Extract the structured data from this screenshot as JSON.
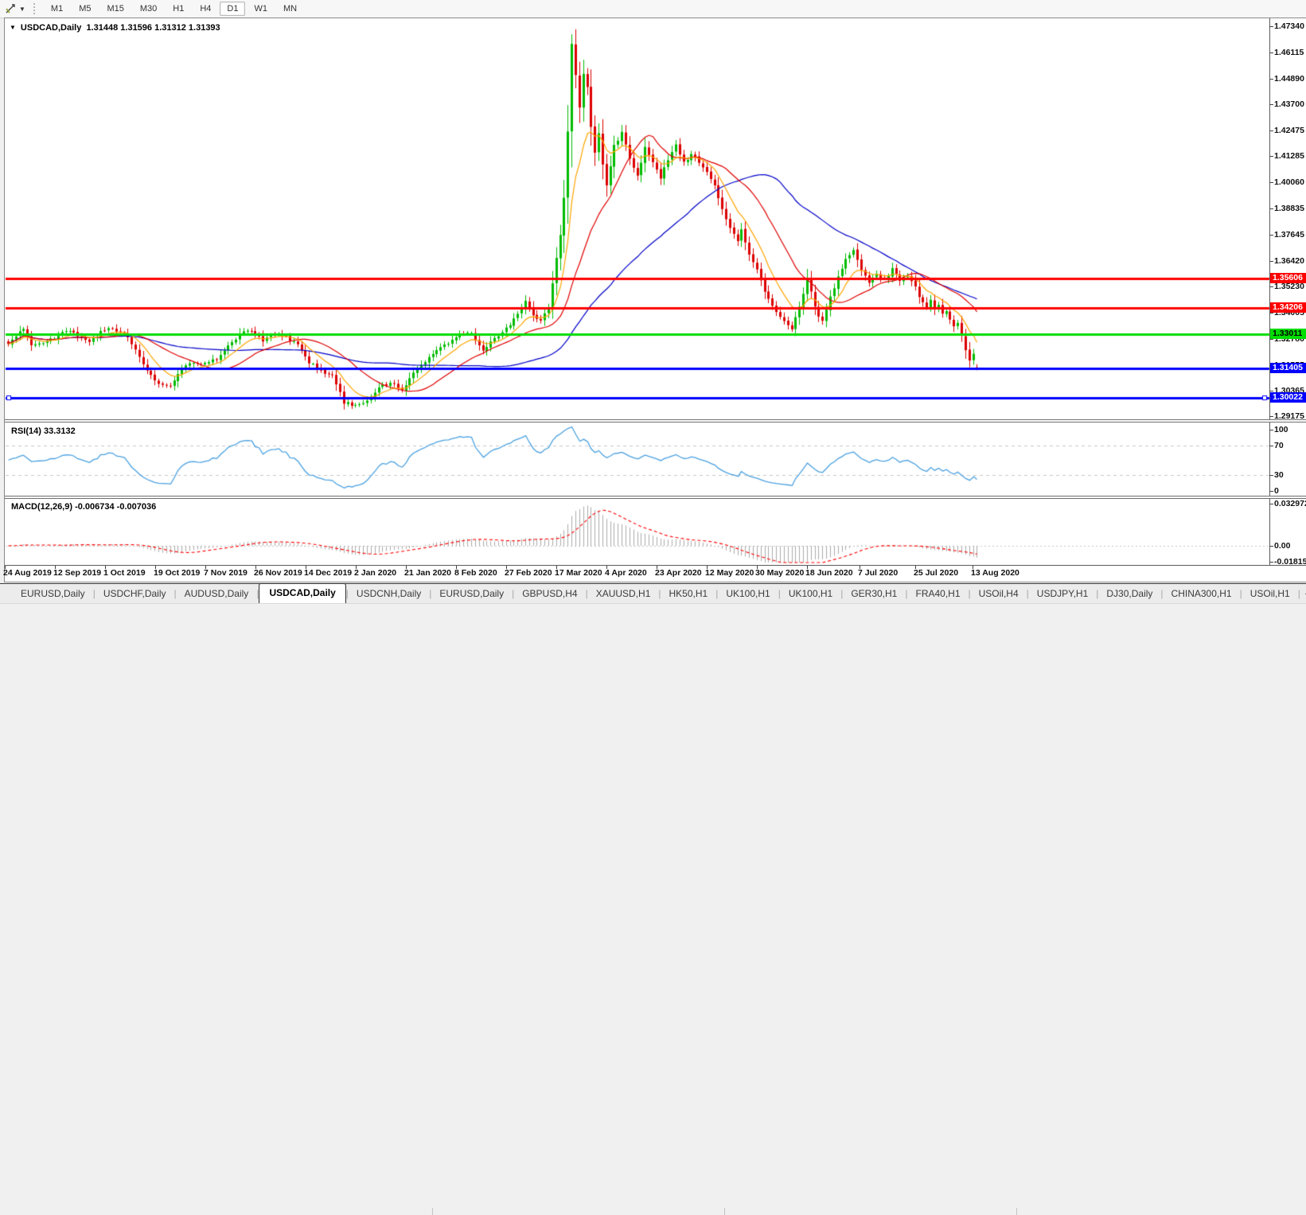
{
  "toolbar": {
    "tool_icon": "trendline-cursor-icon",
    "dropdown_caret": "▼",
    "timeframes": [
      "M1",
      "M5",
      "M15",
      "M30",
      "H1",
      "H4",
      "D1",
      "W1",
      "MN"
    ],
    "active_timeframe": "D1"
  },
  "chart": {
    "title": "USDCAD,Daily",
    "ohlc_text": "1.31448 1.31596 1.31312 1.31393",
    "price_axis_labels": [
      "1.47340",
      "1.46115",
      "1.44890",
      "1.43700",
      "1.42475",
      "1.41285",
      "1.40060",
      "1.38835",
      "1.37645",
      "1.36420",
      "1.35230",
      "1.34005",
      "1.32780",
      "1.31555",
      "1.30365",
      "1.29175"
    ],
    "date_axis_labels": [
      "24 Aug 2019",
      "12 Sep 2019",
      "1 Oct 2019",
      "19 Oct 2019",
      "7 Nov 2019",
      "26 Nov 2019",
      "14 Dec 2019",
      "2 Jan 2020",
      "21 Jan 2020",
      "8 Feb 2020",
      "27 Feb 2020",
      "17 Mar 2020",
      "4 Apr 2020",
      "23 Apr 2020",
      "12 May 2020",
      "30 May 2020",
      "18 Jun 2020",
      "7 Jul 2020",
      "25 Jul 2020",
      "13 Aug 2020"
    ],
    "horizontal_lines": [
      {
        "price": 1.35606,
        "label": "1.35606",
        "color": "#ff0000",
        "text_color": "#ffffff",
        "selected": false
      },
      {
        "price": 1.34206,
        "label": "1.34206",
        "color": "#ff0000",
        "text_color": "#ffffff",
        "selected": false
      },
      {
        "price": 1.33011,
        "label": "1.33011",
        "color": "#00dd00",
        "text_color": "#000000",
        "selected": false
      },
      {
        "price": 1.31405,
        "label": "1.31405",
        "color": "#0000ff",
        "text_color": "#ffffff",
        "selected": false
      },
      {
        "price": 1.30022,
        "label": "1.30022",
        "color": "#0000ff",
        "text_color": "#ffffff",
        "selected": true
      }
    ],
    "colors": {
      "bull_candle": "#00bb00",
      "bear_candle": "#dd0000",
      "ma_fast": "#ffa500",
      "ma_mid": "#e00000",
      "ma_slow": "#0000c8",
      "rsi_line": "#4aa1e0",
      "level_dash": "#c8c8c8",
      "macd_histogram": "#ababab",
      "macd_signal": "#ff0000"
    }
  },
  "rsi_panel": {
    "label": "RSI(14) 33.3132",
    "axis_labels": [
      "100",
      "70",
      "30",
      "0"
    ],
    "upper_level": 70,
    "lower_level": 30
  },
  "macd_panel": {
    "label": "MACD(12,26,9) -0.006734 -0.007036",
    "axis_labels": [
      "0.032972",
      "0.00",
      "-0.018154"
    ]
  },
  "tabs": {
    "items": [
      "EURUSD,Daily",
      "USDCHF,Daily",
      "AUDUSD,Daily",
      "USDCAD,Daily",
      "USDCNH,Daily",
      "EURUSD,Daily",
      "GBPUSD,H4",
      "XAUUSD,H1",
      "HK50,H1",
      "UK100,H1",
      "UK100,H1",
      "GER30,H1",
      "FRA40,H1",
      "USOil,H4",
      "USDJPY,H1",
      "DJ30,Daily",
      "CHINA300,H1",
      "USOil,H1"
    ],
    "active_index": 3,
    "scroll_left": "◄",
    "scroll_right": "►"
  },
  "chart_data": {
    "type": "candlestick",
    "symbol": "USDCAD",
    "timeframe": "Daily",
    "current_bar": {
      "open": 1.31448,
      "high": 1.31596,
      "low": 1.31312,
      "close": 1.31393
    },
    "x_range": [
      "24 Aug 2019",
      "13 Aug 2020"
    ],
    "y_axis": {
      "min": 1.29175,
      "max": 1.4734
    },
    "bars_count": 252,
    "close_anchors": [
      [
        0,
        1.3255
      ],
      [
        2,
        1.329
      ],
      [
        4,
        1.333
      ],
      [
        6,
        1.324
      ],
      [
        9,
        1.3262
      ],
      [
        12,
        1.3282
      ],
      [
        15,
        1.3312
      ],
      [
        18,
        1.3295
      ],
      [
        21,
        1.326
      ],
      [
        24,
        1.331
      ],
      [
        27,
        1.3325
      ],
      [
        30,
        1.33
      ],
      [
        33,
        1.3235
      ],
      [
        36,
        1.313
      ],
      [
        39,
        1.3072
      ],
      [
        42,
        1.3058
      ],
      [
        45,
        1.314
      ],
      [
        48,
        1.3172
      ],
      [
        51,
        1.316
      ],
      [
        54,
        1.3185
      ],
      [
        57,
        1.324
      ],
      [
        60,
        1.3302
      ],
      [
        63,
        1.3315
      ],
      [
        66,
        1.327
      ],
      [
        69,
        1.3302
      ],
      [
        72,
        1.3285
      ],
      [
        75,
        1.3255
      ],
      [
        78,
        1.317
      ],
      [
        81,
        1.3128
      ],
      [
        84,
        1.3105
      ],
      [
        87,
        1.2982
      ],
      [
        90,
        1.2962
      ],
      [
        93,
        1.2992
      ],
      [
        96,
        1.3052
      ],
      [
        99,
        1.3072
      ],
      [
        102,
        1.3042
      ],
      [
        105,
        1.3118
      ],
      [
        108,
        1.3162
      ],
      [
        111,
        1.3232
      ],
      [
        114,
        1.3262
      ],
      [
        117,
        1.3295
      ],
      [
        120,
        1.3302
      ],
      [
        123,
        1.3218
      ],
      [
        126,
        1.3282
      ],
      [
        129,
        1.3325
      ],
      [
        132,
        1.3395
      ],
      [
        134,
        1.345
      ],
      [
        136,
        1.3385
      ],
      [
        138,
        1.3365
      ],
      [
        140,
        1.342
      ],
      [
        142,
        1.3652
      ],
      [
        143,
        1.376
      ],
      [
        144,
        1.393
      ],
      [
        145,
        1.424
      ],
      [
        146,
        1.4645
      ],
      [
        147,
        1.45
      ],
      [
        148,
        1.436
      ],
      [
        149,
        1.4515
      ],
      [
        150,
        1.445
      ],
      [
        151,
        1.4265
      ],
      [
        152,
        1.4148
      ],
      [
        153,
        1.423
      ],
      [
        154,
        1.4088
      ],
      [
        155,
        1.3995
      ],
      [
        157,
        1.4175
      ],
      [
        159,
        1.4242
      ],
      [
        161,
        1.4115
      ],
      [
        163,
        1.4035
      ],
      [
        165,
        1.4172
      ],
      [
        167,
        1.4095
      ],
      [
        169,
        1.4025
      ],
      [
        171,
        1.4115
      ],
      [
        173,
        1.4185
      ],
      [
        175,
        1.4098
      ],
      [
        177,
        1.4135
      ],
      [
        179,
        1.41
      ],
      [
        181,
        1.406
      ],
      [
        183,
        1.3985
      ],
      [
        185,
        1.388
      ],
      [
        187,
        1.3795
      ],
      [
        189,
        1.374
      ],
      [
        190,
        1.3785
      ],
      [
        192,
        1.3675
      ],
      [
        194,
        1.3595
      ],
      [
        196,
        1.35
      ],
      [
        198,
        1.3425
      ],
      [
        200,
        1.3375
      ],
      [
        202,
        1.334
      ],
      [
        203,
        1.3328
      ],
      [
        205,
        1.3425
      ],
      [
        207,
        1.3558
      ],
      [
        209,
        1.343
      ],
      [
        210,
        1.3378
      ],
      [
        211,
        1.3358
      ],
      [
        213,
        1.3478
      ],
      [
        215,
        1.3562
      ],
      [
        217,
        1.3648
      ],
      [
        219,
        1.3692
      ],
      [
        221,
        1.36
      ],
      [
        223,
        1.3545
      ],
      [
        225,
        1.3582
      ],
      [
        227,
        1.3552
      ],
      [
        229,
        1.36
      ],
      [
        231,
        1.3552
      ],
      [
        233,
        1.3568
      ],
      [
        235,
        1.352
      ],
      [
        236,
        1.348
      ],
      [
        238,
        1.343
      ],
      [
        239,
        1.3458
      ],
      [
        240,
        1.3415
      ],
      [
        241,
        1.344
      ],
      [
        242,
        1.339
      ],
      [
        243,
        1.341
      ],
      [
        244,
        1.3368
      ],
      [
        245,
        1.333
      ],
      [
        246,
        1.335
      ],
      [
        247,
        1.3288
      ],
      [
        248,
        1.3228
      ],
      [
        249,
        1.3178
      ],
      [
        250,
        1.3208
      ],
      [
        251,
        1.31393
      ]
    ],
    "moving_averages": [
      {
        "name": "fast",
        "type": "EMA",
        "period": 9,
        "color": "#ffa500"
      },
      {
        "name": "mid",
        "type": "SMA",
        "period": 22,
        "color": "#e00000"
      },
      {
        "name": "slow",
        "type": "SMA",
        "period": 55,
        "color": "#0000c8"
      }
    ],
    "rsi": {
      "period": 14,
      "current": 33.3132,
      "levels": [
        70,
        30
      ],
      "scale": [
        0,
        100
      ]
    },
    "macd": {
      "fast": 12,
      "slow": 26,
      "signal_period": 9,
      "current_macd": -0.006734,
      "current_signal": -0.007036,
      "axis_range": [
        -0.018154,
        0.032972
      ]
    },
    "hline_values": [
      1.35606,
      1.34206,
      1.33011,
      1.31405,
      1.30022
    ]
  }
}
